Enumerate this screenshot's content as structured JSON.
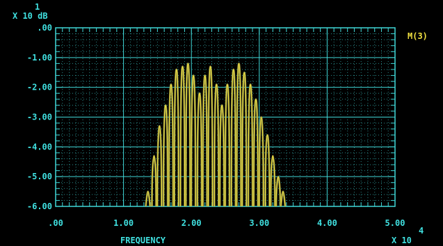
{
  "chart_data": {
    "type": "line",
    "y_scale_label": "X 10 dB",
    "y_scale_exponent": "1",
    "x_scale_label": "X 10",
    "x_scale_exponent": "4",
    "xlabel": "FREQUENCY",
    "ylabel": "",
    "xlim": [
      0,
      5
    ],
    "ylim": [
      -6,
      0
    ],
    "x_ticks": [
      ".00",
      "1.00",
      "2.00",
      "3.00",
      "4.00",
      "5.00"
    ],
    "y_ticks": [
      ".00",
      "-1.00",
      "-2.00",
      "-3.00",
      "-4.00",
      "-5.00",
      "-6.00"
    ],
    "grid": true,
    "legend_position": "right",
    "series": [
      {
        "name": "M(3)",
        "color": "#f0e040",
        "peaks": [
          {
            "x": 1.36,
            "y": -5.5
          },
          {
            "x": 1.45,
            "y": -4.3
          },
          {
            "x": 1.53,
            "y": -3.3
          },
          {
            "x": 1.62,
            "y": -2.6
          },
          {
            "x": 1.7,
            "y": -1.9
          },
          {
            "x": 1.78,
            "y": -1.4
          },
          {
            "x": 1.87,
            "y": -1.3
          },
          {
            "x": 1.95,
            "y": -1.2
          },
          {
            "x": 2.03,
            "y": -1.6
          },
          {
            "x": 2.12,
            "y": -2.2
          },
          {
            "x": 2.2,
            "y": -1.6
          },
          {
            "x": 2.28,
            "y": -1.3
          },
          {
            "x": 2.37,
            "y": -1.9
          },
          {
            "x": 2.45,
            "y": -2.6
          },
          {
            "x": 2.53,
            "y": -1.9
          },
          {
            "x": 2.62,
            "y": -1.4
          },
          {
            "x": 2.7,
            "y": -1.2
          },
          {
            "x": 2.78,
            "y": -1.5
          },
          {
            "x": 2.87,
            "y": -1.9
          },
          {
            "x": 2.95,
            "y": -2.4
          },
          {
            "x": 3.03,
            "y": -3.0
          },
          {
            "x": 3.12,
            "y": -3.6
          },
          {
            "x": 3.2,
            "y": -4.3
          },
          {
            "x": 3.28,
            "y": -5.0
          },
          {
            "x": 3.35,
            "y": -5.5
          }
        ]
      }
    ]
  }
}
